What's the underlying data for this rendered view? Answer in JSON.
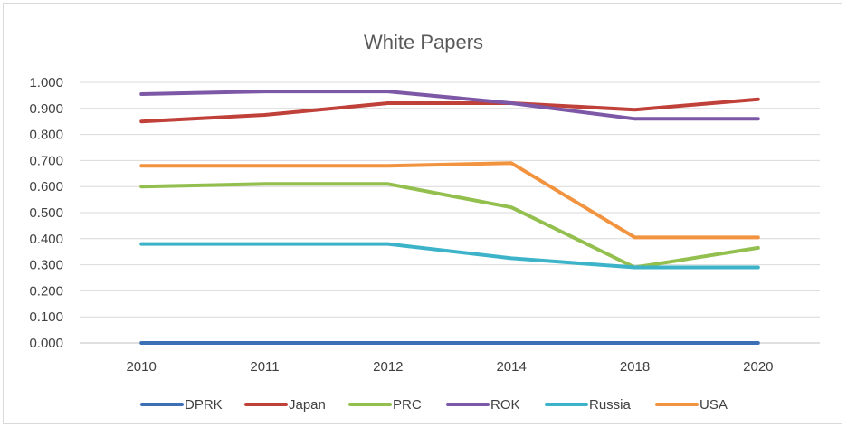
{
  "chart_data": {
    "type": "line",
    "title": "White Papers",
    "xlabel": "",
    "ylabel": "",
    "categories": [
      "2010",
      "2011",
      "2012",
      "2014",
      "2018",
      "2020"
    ],
    "ylim": [
      0,
      1.0
    ],
    "yticks": [
      "0.000",
      "0.100",
      "0.200",
      "0.300",
      "0.400",
      "0.500",
      "0.600",
      "0.700",
      "0.800",
      "0.900",
      "1.000"
    ],
    "grid": true,
    "legend_position": "bottom",
    "series": [
      {
        "name": "DPRK",
        "color": "#3c6fb6",
        "values": [
          0.0,
          0.0,
          0.0,
          0.0,
          0.0,
          0.0
        ]
      },
      {
        "name": "Japan",
        "color": "#c0403a",
        "values": [
          0.85,
          0.875,
          0.92,
          0.92,
          0.895,
          0.935
        ]
      },
      {
        "name": "PRC",
        "color": "#93bf4f",
        "values": [
          0.6,
          0.61,
          0.61,
          0.52,
          0.29,
          0.365
        ]
      },
      {
        "name": "ROK",
        "color": "#7d58a6",
        "values": [
          0.955,
          0.965,
          0.965,
          0.92,
          0.86,
          0.86
        ]
      },
      {
        "name": "Russia",
        "color": "#3cb3c8",
        "values": [
          0.38,
          0.38,
          0.38,
          0.325,
          0.29,
          0.29
        ]
      },
      {
        "name": "USA",
        "color": "#f2933f",
        "values": [
          0.68,
          0.68,
          0.68,
          0.69,
          0.405,
          0.405
        ]
      }
    ]
  }
}
